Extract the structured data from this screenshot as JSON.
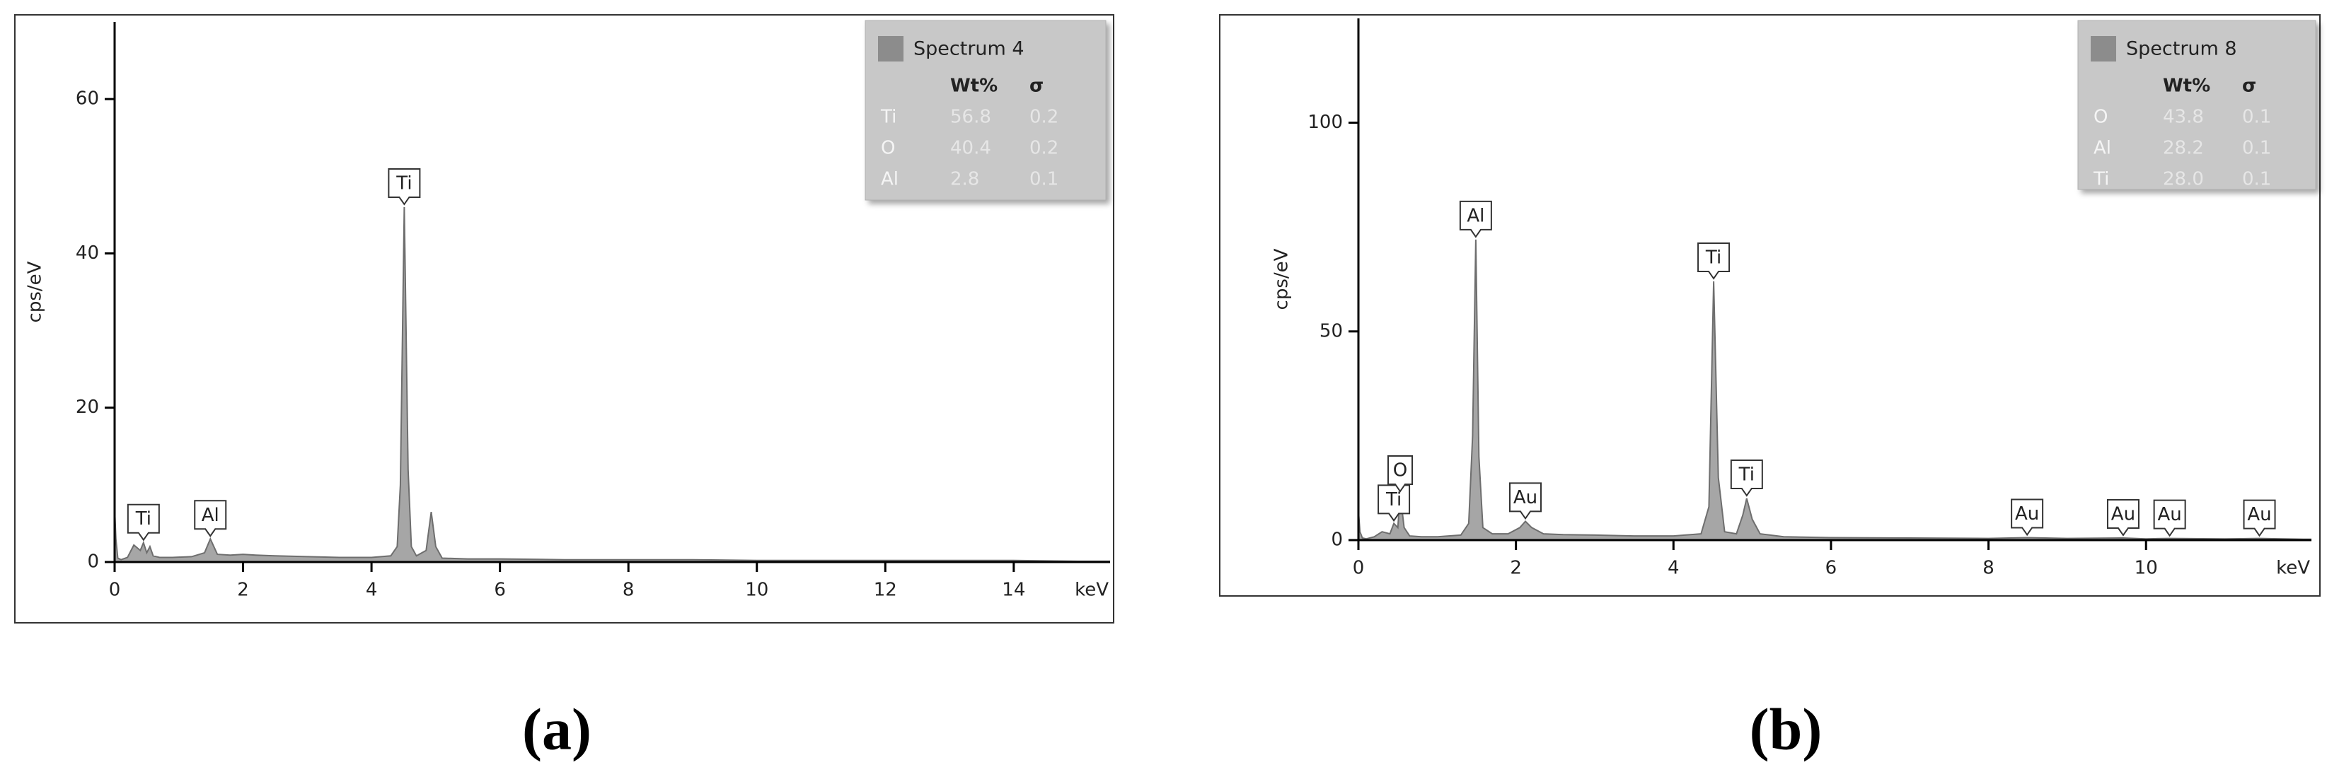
{
  "chart_data": [
    {
      "type": "area",
      "caption": "(a)",
      "ylabel": "cps/eV",
      "xlabel": "keV",
      "xlim": [
        0,
        15.5
      ],
      "ylim": [
        0,
        70
      ],
      "xticks": [
        0,
        2,
        4,
        6,
        8,
        10,
        12,
        14
      ],
      "yticks": [
        0,
        20,
        40,
        60
      ],
      "series": [
        {
          "name": "Spectrum 4",
          "color": "#a6a6a6",
          "x": [
            0,
            0.02,
            0.05,
            0.1,
            0.2,
            0.3,
            0.4,
            0.45,
            0.5,
            0.55,
            0.6,
            0.7,
            0.9,
            1.2,
            1.4,
            1.49,
            1.6,
            1.8,
            2.0,
            2.2,
            2.5,
            3,
            3.5,
            4.0,
            4.3,
            4.4,
            4.45,
            4.51,
            4.57,
            4.62,
            4.7,
            4.85,
            4.93,
            5.0,
            5.1,
            5.5,
            6,
            7,
            8,
            9,
            10,
            11,
            12,
            13,
            14,
            15,
            15.5
          ],
          "values": [
            7,
            3,
            0.5,
            0.3,
            0.6,
            2.2,
            1.5,
            2.5,
            1.2,
            2.0,
            0.8,
            0.6,
            0.6,
            0.7,
            1.2,
            3.0,
            1.0,
            0.9,
            1.0,
            0.9,
            0.8,
            0.7,
            0.6,
            0.6,
            0.8,
            2,
            10,
            46,
            12,
            2,
            0.8,
            1.5,
            6.5,
            2,
            0.5,
            0.4,
            0.4,
            0.3,
            0.3,
            0.3,
            0.2,
            0.2,
            0.2,
            0.2,
            0.2,
            0.1,
            0.1
          ]
        }
      ],
      "peaks": [
        {
          "label": "Ti",
          "x": 0.45,
          "y": 2.5
        },
        {
          "label": "Al",
          "x": 1.49,
          "y": 3.0
        },
        {
          "label": "Ti",
          "x": 4.51,
          "y": 46
        }
      ],
      "table": {
        "columns": [
          "Wt%",
          "σ"
        ],
        "rows": [
          [
            "Ti",
            "56.8",
            "0.2"
          ],
          [
            "O",
            "40.4",
            "0.2"
          ],
          [
            "Al",
            "2.8",
            "0.1"
          ]
        ]
      }
    },
    {
      "type": "area",
      "caption": "(b)",
      "ylabel": "cps/eV",
      "xlabel": "keV",
      "xlim": [
        0,
        12.1
      ],
      "ylim": [
        0,
        125
      ],
      "xticks": [
        0,
        2,
        4,
        6,
        8,
        10
      ],
      "yticks": [
        0,
        50,
        100
      ],
      "series": [
        {
          "name": "Spectrum 8",
          "color": "#a6a6a6",
          "x": [
            0,
            0.02,
            0.05,
            0.1,
            0.2,
            0.3,
            0.4,
            0.45,
            0.5,
            0.53,
            0.58,
            0.65,
            0.8,
            1.0,
            1.3,
            1.4,
            1.45,
            1.49,
            1.53,
            1.58,
            1.7,
            1.9,
            2.05,
            2.12,
            2.2,
            2.35,
            2.6,
            3,
            3.5,
            4,
            4.35,
            4.45,
            4.51,
            4.57,
            4.65,
            4.8,
            4.88,
            4.93,
            5.0,
            5.1,
            5.4,
            6,
            7,
            8,
            8.49,
            9,
            9.71,
            10,
            10.3,
            11,
            11.44,
            12,
            12.1
          ],
          "values": [
            7,
            2,
            0.5,
            0.3,
            0.8,
            2,
            1.5,
            4,
            3,
            11,
            3,
            1,
            0.8,
            0.8,
            1.2,
            4,
            25,
            72,
            20,
            3,
            1.5,
            1.5,
            3,
            4.5,
            3,
            1.5,
            1.3,
            1.2,
            1.0,
            1.0,
            1.5,
            8,
            62,
            15,
            2,
            1.5,
            6,
            10,
            5,
            1.5,
            0.8,
            0.6,
            0.5,
            0.4,
            0.6,
            0.4,
            0.5,
            0.3,
            0.4,
            0.3,
            0.4,
            0.2,
            0.2
          ]
        }
      ],
      "peaks": [
        {
          "label": "Ti",
          "x": 0.45,
          "y": 4
        },
        {
          "label": "O",
          "x": 0.53,
          "y": 11
        },
        {
          "label": "Al",
          "x": 1.49,
          "y": 72
        },
        {
          "label": "Au",
          "x": 2.12,
          "y": 4.5
        },
        {
          "label": "Ti",
          "x": 4.51,
          "y": 62
        },
        {
          "label": "Ti",
          "x": 4.93,
          "y": 10
        },
        {
          "label": "Au",
          "x": 8.49,
          "y": 0.6
        },
        {
          "label": "Au",
          "x": 9.71,
          "y": 0.5
        },
        {
          "label": "Au",
          "x": 10.3,
          "y": 0.4
        },
        {
          "label": "Au",
          "x": 11.44,
          "y": 0.4
        }
      ],
      "table": {
        "columns": [
          "Wt%",
          "σ"
        ],
        "rows": [
          [
            "O",
            "43.8",
            "0.1"
          ],
          [
            "Al",
            "28.2",
            "0.1"
          ],
          [
            "Ti",
            "28.0",
            "0.1"
          ]
        ]
      }
    }
  ]
}
